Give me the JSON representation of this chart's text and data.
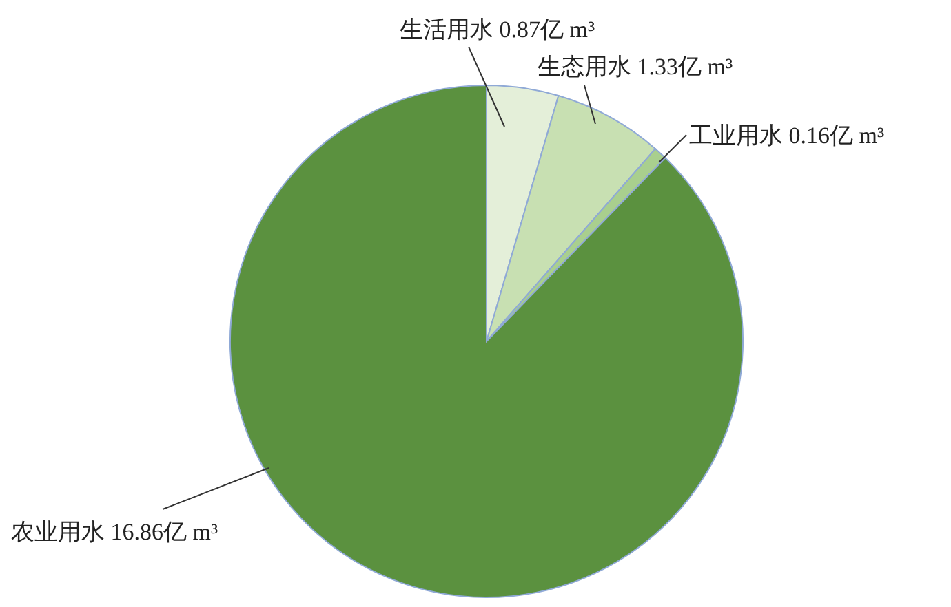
{
  "chart_data": {
    "type": "pie",
    "categories": [
      "生活用水",
      "生态用水",
      "工业用水",
      "农业用水"
    ],
    "values": [
      0.87,
      1.33,
      0.16,
      16.86
    ],
    "value_labels": [
      "0.87亿 m³",
      "1.33亿 m³",
      "0.16亿 m³",
      "16.86亿 m³"
    ],
    "colors": [
      "#e4efd9",
      "#c8e0b2",
      "#a9cf8e",
      "#5b913f"
    ],
    "legend": false
  }
}
